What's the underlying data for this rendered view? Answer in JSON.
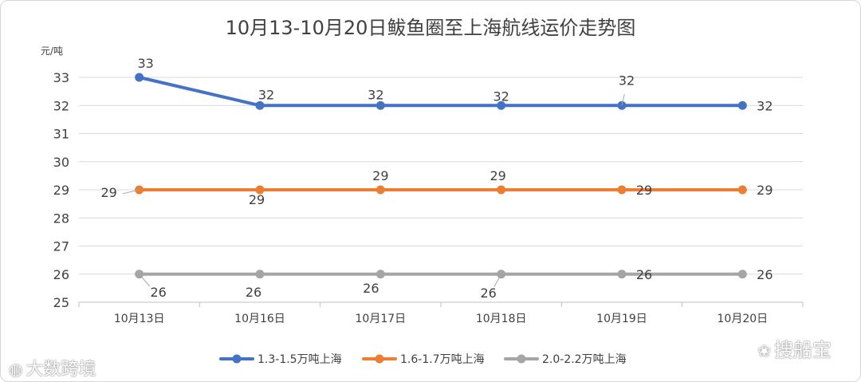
{
  "chart_data": {
    "type": "line",
    "title": "10月13-10月20日鲅鱼圈至上海航线运价走势图",
    "ylabel": "元/吨",
    "xlabel": "",
    "categories": [
      "10月13日",
      "10月16日",
      "10月17日",
      "10月18日",
      "10月19日",
      "10月20日"
    ],
    "ylim": [
      25,
      33
    ],
    "yticks": [
      25,
      26,
      27,
      28,
      29,
      30,
      31,
      32,
      33
    ],
    "grid": true,
    "legend": "bottom",
    "series": [
      {
        "name": "1.3-1.5万吨上海",
        "color": "#4472c4",
        "values": [
          33,
          32,
          32,
          32,
          32,
          32
        ]
      },
      {
        "name": "1.6-1.7万吨上海",
        "color": "#ed7d31",
        "values": [
          29,
          29,
          29,
          29,
          29,
          29
        ]
      },
      {
        "name": "2.0-2.2万吨上海",
        "color": "#a5a5a5",
        "values": [
          26,
          26,
          26,
          26,
          26,
          26
        ]
      }
    ]
  },
  "watermarks": {
    "left": "大数跨境",
    "right": "搜船宝",
    "left_icon": "weibo-icon",
    "right_icon": "wechat-icon"
  }
}
